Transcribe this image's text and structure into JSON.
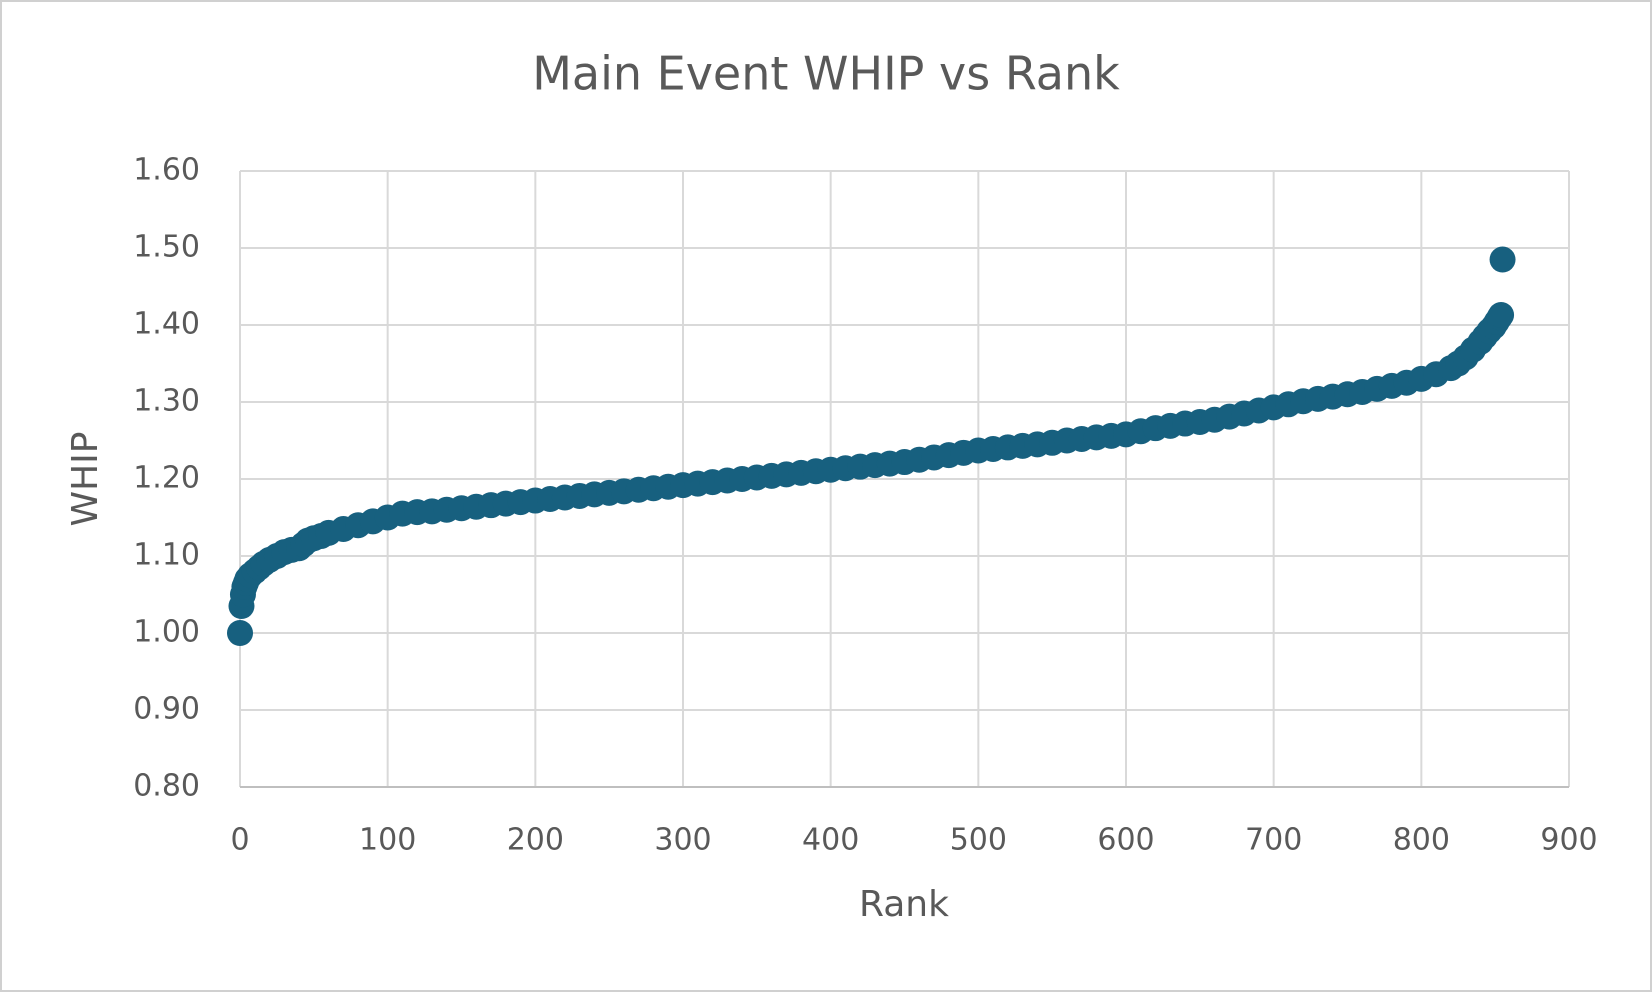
{
  "chart_data": {
    "type": "scatter",
    "title": "Main Event WHIP vs Rank",
    "x_label": "Rank",
    "y_label": "WHIP",
    "series": [
      {
        "color": "#17607f",
        "x": [
          0,
          1,
          2,
          3,
          4,
          5,
          7,
          10,
          13,
          16,
          20,
          25,
          30,
          35,
          40,
          43,
          46,
          50,
          55,
          60,
          70,
          80,
          90,
          100,
          110,
          120,
          130,
          140,
          150,
          160,
          170,
          180,
          190,
          200,
          210,
          220,
          230,
          240,
          250,
          260,
          270,
          280,
          290,
          300,
          310,
          320,
          330,
          340,
          350,
          360,
          370,
          380,
          390,
          400,
          410,
          420,
          430,
          440,
          450,
          460,
          470,
          480,
          490,
          500,
          510,
          520,
          530,
          540,
          550,
          560,
          570,
          580,
          590,
          600,
          610,
          620,
          630,
          640,
          650,
          660,
          670,
          680,
          690,
          700,
          710,
          720,
          730,
          740,
          750,
          760,
          770,
          780,
          790,
          800,
          810,
          820,
          825,
          830,
          835,
          840,
          843,
          846,
          849,
          851,
          853,
          854,
          855
        ],
        "values": [
          1.0,
          1.035,
          1.05,
          1.06,
          1.065,
          1.07,
          1.075,
          1.08,
          1.085,
          1.09,
          1.095,
          1.1,
          1.105,
          1.108,
          1.11,
          1.115,
          1.12,
          1.123,
          1.126,
          1.13,
          1.135,
          1.14,
          1.145,
          1.15,
          1.155,
          1.157,
          1.158,
          1.16,
          1.162,
          1.164,
          1.166,
          1.168,
          1.17,
          1.172,
          1.174,
          1.176,
          1.178,
          1.18,
          1.182,
          1.184,
          1.186,
          1.188,
          1.19,
          1.192,
          1.194,
          1.196,
          1.198,
          1.2,
          1.202,
          1.204,
          1.206,
          1.208,
          1.21,
          1.212,
          1.214,
          1.216,
          1.218,
          1.22,
          1.222,
          1.225,
          1.228,
          1.231,
          1.234,
          1.237,
          1.239,
          1.241,
          1.243,
          1.245,
          1.247,
          1.25,
          1.252,
          1.254,
          1.256,
          1.258,
          1.262,
          1.266,
          1.269,
          1.272,
          1.274,
          1.277,
          1.281,
          1.285,
          1.289,
          1.293,
          1.297,
          1.301,
          1.304,
          1.307,
          1.31,
          1.313,
          1.317,
          1.321,
          1.325,
          1.33,
          1.336,
          1.344,
          1.35,
          1.358,
          1.368,
          1.378,
          1.385,
          1.392,
          1.398,
          1.404,
          1.41,
          1.413,
          1.485
        ]
      }
    ],
    "xlim": [
      0,
      900
    ],
    "xticks": [
      0,
      100,
      200,
      300,
      400,
      500,
      600,
      700,
      800,
      900
    ],
    "ylim": [
      0.8,
      1.6
    ],
    "yticks": [
      {
        "value": 0.8,
        "label": "0.80"
      },
      {
        "value": 0.9,
        "label": "0.90"
      },
      {
        "value": 1.0,
        "label": "1.00"
      },
      {
        "value": 1.1,
        "label": "1.10"
      },
      {
        "value": 1.2,
        "label": "1.20"
      },
      {
        "value": 1.3,
        "label": "1.30"
      },
      {
        "value": 1.4,
        "label": "1.40"
      },
      {
        "value": 1.5,
        "label": "1.50"
      },
      {
        "value": 1.6,
        "label": "1.60"
      }
    ],
    "grid": true
  }
}
